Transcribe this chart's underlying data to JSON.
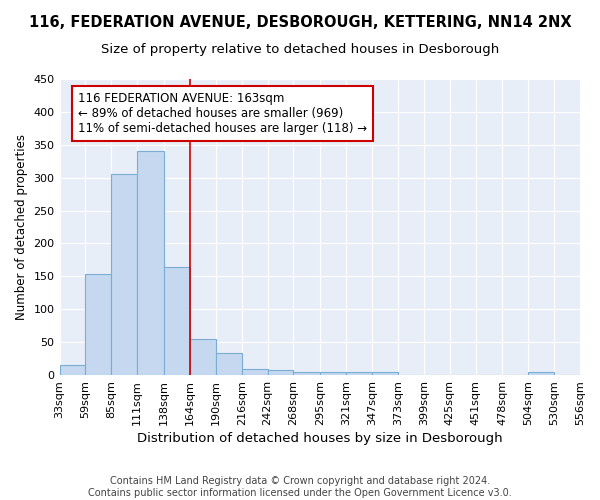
{
  "title": "116, FEDERATION AVENUE, DESBOROUGH, KETTERING, NN14 2NX",
  "subtitle": "Size of property relative to detached houses in Desborough",
  "xlabel": "Distribution of detached houses by size in Desborough",
  "ylabel": "Number of detached properties",
  "footer_line1": "Contains HM Land Registry data © Crown copyright and database right 2024.",
  "footer_line2": "Contains public sector information licensed under the Open Government Licence v3.0.",
  "bin_edges": [
    33,
    59,
    85,
    111,
    138,
    164,
    190,
    216,
    242,
    268,
    295,
    321,
    347,
    373,
    399,
    425,
    451,
    478,
    504,
    530,
    556
  ],
  "bar_heights": [
    15,
    153,
    305,
    340,
    165,
    55,
    33,
    9,
    7,
    5,
    5,
    4,
    4,
    0,
    0,
    0,
    0,
    0,
    5,
    0
  ],
  "bar_color": "#c5d8f0",
  "bar_edge_color": "#7aadd4",
  "vline_x": 164,
  "vline_color": "#cc0000",
  "annotation_line1": "116 FEDERATION AVENUE: 163sqm",
  "annotation_line2": "← 89% of detached houses are smaller (969)",
  "annotation_line3": "11% of semi-detached houses are larger (118) →",
  "annotation_box_color": "#cc0000",
  "ylim": [
    0,
    450
  ],
  "yticks": [
    0,
    50,
    100,
    150,
    200,
    250,
    300,
    350,
    400,
    450
  ],
  "bg_color": "#e8eef8",
  "grid_color": "#ffffff",
  "title_fontsize": 10.5,
  "subtitle_fontsize": 9.5,
  "xlabel_fontsize": 9.5,
  "ylabel_fontsize": 8.5,
  "tick_fontsize": 8,
  "annotation_fontsize": 8.5,
  "footer_fontsize": 7
}
